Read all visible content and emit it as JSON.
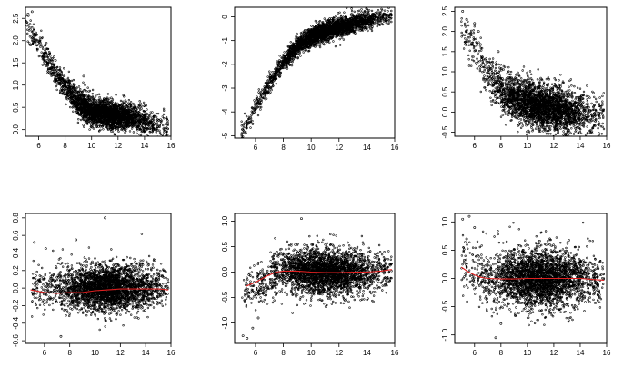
{
  "chart_data": [
    {
      "type": "scatter",
      "panel": "top-left",
      "xlim": [
        5,
        16
      ],
      "ylim": [
        -0.15,
        2.75
      ],
      "x_ticks": [
        "6",
        "8",
        "10",
        "12",
        "14",
        "16"
      ],
      "y_ticks": [
        "0.0",
        "0.5",
        "1.0",
        "1.5",
        "2.0",
        "2.5"
      ],
      "grid": false,
      "series": [
        {
          "trend": {
            "x": [
              5,
              6,
              7,
              8,
              9,
              10,
              11,
              12,
              13,
              14,
              15,
              15.8
            ],
            "y": [
              2.45,
              1.9,
              1.4,
              0.95,
              0.6,
              0.42,
              0.35,
              0.3,
              0.26,
              0.2,
              0.12,
              0.08
            ]
          },
          "spread": 0.12,
          "density_peak_x": 11,
          "points": [
            [
              5.2,
              2.6
            ],
            [
              5.5,
              2.65
            ],
            [
              6.1,
              2.0
            ],
            [
              6.5,
              1.9
            ],
            [
              9.4,
              1.2
            ]
          ]
        }
      ]
    },
    {
      "type": "scatter",
      "panel": "top-middle",
      "xlim": [
        4.5,
        16
      ],
      "ylim": [
        -5.1,
        0.4
      ],
      "x_ticks": [
        "6",
        "8",
        "10",
        "12",
        "14",
        "16"
      ],
      "y_ticks": [
        "-5",
        "-4",
        "-3",
        "-2",
        "-1",
        "0"
      ],
      "grid": false,
      "series": [
        {
          "trend": {
            "x": [
              5,
              6,
              7,
              8,
              9,
              10,
              11,
              12,
              13,
              14,
              15,
              15.8
            ],
            "y": [
              -4.9,
              -3.8,
              -2.8,
              -1.9,
              -1.25,
              -0.85,
              -0.6,
              -0.42,
              -0.28,
              -0.15,
              -0.05,
              0.05
            ]
          },
          "spread": 0.15,
          "density_peak_x": 11,
          "points": [
            [
              5.3,
              -4.9
            ],
            [
              5.8,
              -4.5
            ],
            [
              6.3,
              -3.6
            ],
            [
              6.6,
              -3.2
            ]
          ]
        }
      ]
    },
    {
      "type": "scatter",
      "panel": "top-right",
      "xlim": [
        4.5,
        16
      ],
      "ylim": [
        -0.6,
        2.6
      ],
      "x_ticks": [
        "6",
        "8",
        "10",
        "12",
        "14",
        "16"
      ],
      "y_ticks": [
        "-0.5",
        "0.0",
        "0.5",
        "1.0",
        "1.5",
        "2.0",
        "2.5"
      ],
      "grid": false,
      "series": [
        {
          "trend": {
            "x": [
              5,
              6,
              7,
              8,
              9,
              10,
              11,
              12,
              13,
              14,
              15,
              15.8
            ],
            "y": [
              2.1,
              1.6,
              1.0,
              0.55,
              0.35,
              0.25,
              0.15,
              0.08,
              0.02,
              -0.05,
              -0.12,
              -0.15
            ]
          },
          "spread": 0.22,
          "density_peak_x": 11,
          "points": [
            [
              5.1,
              2.5
            ],
            [
              5.4,
              2.3
            ],
            [
              6.0,
              2.2
            ],
            [
              6.3,
              2.0
            ],
            [
              7.8,
              1.5
            ]
          ]
        }
      ]
    },
    {
      "type": "scatter",
      "panel": "bottom-left",
      "xlim": [
        4.5,
        16
      ],
      "ylim": [
        -0.63,
        0.85
      ],
      "x_ticks": [
        "6",
        "8",
        "10",
        "12",
        "14",
        "16"
      ],
      "y_ticks": [
        "-0.6",
        "-0.4",
        "-0.2",
        "0.0",
        "0.2",
        "0.4",
        "0.6",
        "0.8"
      ],
      "grid": false,
      "series": [
        {
          "trend": {
            "x": [
              5,
              6,
              7,
              8,
              9,
              10,
              11,
              12,
              13,
              14,
              15,
              15.8
            ],
            "y": [
              0.0,
              0.0,
              0.0,
              0.0,
              0.0,
              0.0,
              0.0,
              0.0,
              0.0,
              0.0,
              0.0,
              0.0
            ]
          },
          "spread": 0.1,
          "density_peak_x": 11,
          "points": [
            [
              10.8,
              0.8
            ],
            [
              5.2,
              0.52
            ],
            [
              6.1,
              0.45
            ],
            [
              7.3,
              -0.55
            ],
            [
              8.5,
              0.55
            ]
          ]
        },
        {
          "name": "",
          "color": "#e02020",
          "x": [
            4.9,
            6,
            7,
            8,
            9,
            10,
            11,
            12,
            13,
            14,
            15,
            15.8
          ],
          "y": [
            -0.02,
            -0.05,
            -0.06,
            -0.05,
            -0.05,
            -0.03,
            -0.02,
            -0.01,
            -0.01,
            -0.01,
            -0.01,
            -0.02
          ]
        }
      ]
    },
    {
      "type": "scatter",
      "panel": "bottom-middle",
      "xlim": [
        4.5,
        16
      ],
      "ylim": [
        -1.4,
        1.15
      ],
      "x_ticks": [
        "6",
        "8",
        "10",
        "12",
        "14",
        "16"
      ],
      "y_ticks": [
        "-1.0",
        "-0.5",
        "0.0",
        "0.5",
        "1.0"
      ],
      "grid": false,
      "series": [
        {
          "trend": {
            "x": [
              5,
              6,
              7,
              8,
              9,
              10,
              11,
              12,
              13,
              14,
              15,
              15.8
            ],
            "y": [
              -0.45,
              -0.3,
              -0.1,
              0.02,
              0.02,
              0.0,
              0.0,
              0.0,
              0.0,
              0.0,
              0.02,
              0.05
            ]
          },
          "spread": 0.17,
          "density_peak_x": 11,
          "points": [
            [
              5.1,
              -1.25
            ],
            [
              5.4,
              -1.3
            ],
            [
              5.8,
              -1.1
            ],
            [
              9.3,
              1.05
            ],
            [
              6.2,
              -0.9
            ]
          ]
        },
        {
          "name": "",
          "color": "#e02020",
          "x": [
            5.3,
            6,
            6.8,
            7.5,
            8,
            9,
            10,
            11,
            12,
            13,
            14,
            15,
            15.8
          ],
          "y": [
            -0.28,
            -0.2,
            -0.08,
            0.0,
            0.02,
            0.02,
            0.0,
            -0.01,
            -0.01,
            0.0,
            0.0,
            0.02,
            0.05
          ]
        }
      ]
    },
    {
      "type": "scatter",
      "panel": "bottom-right",
      "xlim": [
        4.5,
        16
      ],
      "ylim": [
        -1.15,
        1.15
      ],
      "x_ticks": [
        "6",
        "8",
        "10",
        "12",
        "14",
        "16"
      ],
      "y_ticks": [
        "-1.0",
        "-0.5",
        "0.0",
        "0.5",
        "1.0"
      ],
      "grid": false,
      "series": [
        {
          "trend": {
            "x": [
              5,
              6,
              7,
              8,
              9,
              10,
              11,
              12,
              13,
              14,
              15,
              15.8
            ],
            "y": [
              0.25,
              0.08,
              0.0,
              0.0,
              0.0,
              0.0,
              0.0,
              0.0,
              0.0,
              0.0,
              -0.02,
              -0.03
            ]
          },
          "spread": 0.2,
          "density_peak_x": 11,
          "points": [
            [
              5.1,
              1.05
            ],
            [
              5.6,
              1.1
            ],
            [
              6.0,
              0.9
            ],
            [
              7.6,
              -1.05
            ],
            [
              8.0,
              -0.8
            ],
            [
              5.4,
              0.7
            ]
          ]
        },
        {
          "name": "",
          "color": "#e02020",
          "x": [
            5,
            5.5,
            6,
            6.5,
            7,
            8,
            9,
            10,
            11,
            12,
            13,
            14,
            15,
            15.8
          ],
          "y": [
            0.2,
            0.12,
            0.06,
            0.02,
            0.0,
            -0.01,
            -0.01,
            0.0,
            0.0,
            0.0,
            0.0,
            0.0,
            -0.02,
            -0.03
          ]
        }
      ]
    }
  ]
}
